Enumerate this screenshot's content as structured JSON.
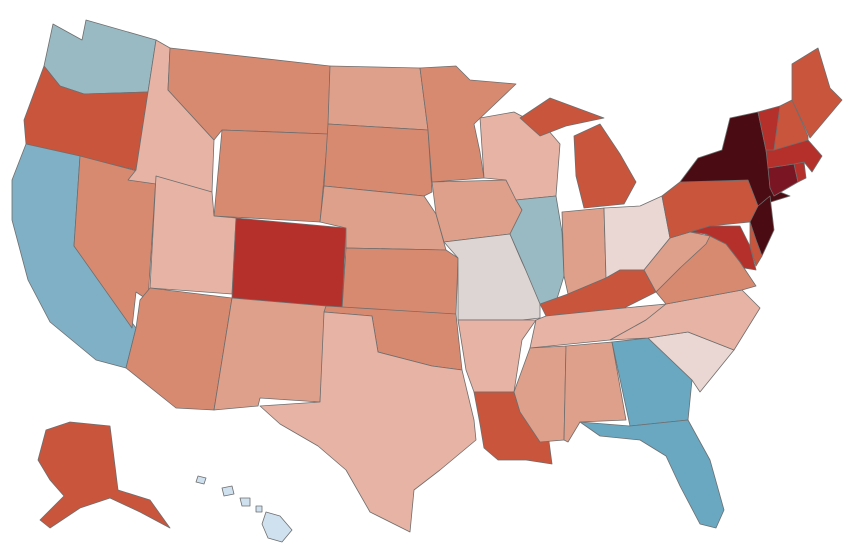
{
  "map": {
    "palette": {
      "very_dark_red": "#4a0c12",
      "dark_red": "#7a1624",
      "red": "#b5302b",
      "medium_red": "#c9553d",
      "salmon": "#d88a70",
      "light_salmon": "#dea08a",
      "pale_salmon": "#e6b3a4",
      "very_pale": "#ead6d2",
      "neutral": "#ddd5d3",
      "light_blue": "#99bac3",
      "blue": "#7fb0c5",
      "medium_blue": "#6aa7c1",
      "pale_blue": "#cfe0ef"
    },
    "states": [
      {
        "id": "WA",
        "color": "#99bac3"
      },
      {
        "id": "OR",
        "color": "#c9553d"
      },
      {
        "id": "CA",
        "color": "#7fb0c5"
      },
      {
        "id": "NV",
        "color": "#d88a70"
      },
      {
        "id": "ID",
        "color": "#e6b3a4"
      },
      {
        "id": "MT",
        "color": "#d88a70"
      },
      {
        "id": "WY",
        "color": "#d88a70"
      },
      {
        "id": "UT",
        "color": "#e6b3a4"
      },
      {
        "id": "AZ",
        "color": "#d88a70"
      },
      {
        "id": "CO",
        "color": "#b5302b"
      },
      {
        "id": "NM",
        "color": "#dea08a"
      },
      {
        "id": "ND",
        "color": "#dea08a"
      },
      {
        "id": "SD",
        "color": "#d88a70"
      },
      {
        "id": "NE",
        "color": "#dea08a"
      },
      {
        "id": "KS",
        "color": "#d88a70"
      },
      {
        "id": "OK",
        "color": "#d88a70"
      },
      {
        "id": "TX",
        "color": "#e6b3a4"
      },
      {
        "id": "MN",
        "color": "#d88a70"
      },
      {
        "id": "IA",
        "color": "#dea08a"
      },
      {
        "id": "MO",
        "color": "#ddd5d3"
      },
      {
        "id": "AR",
        "color": "#e6b3a4"
      },
      {
        "id": "LA",
        "color": "#c9553d"
      },
      {
        "id": "WI",
        "color": "#e6b3a4"
      },
      {
        "id": "IL",
        "color": "#99bac3"
      },
      {
        "id": "MI",
        "color": "#c9553d"
      },
      {
        "id": "IN",
        "color": "#dea08a"
      },
      {
        "id": "OH",
        "color": "#ead6d2"
      },
      {
        "id": "KY",
        "color": "#c9553d"
      },
      {
        "id": "TN",
        "color": "#e6b3a4"
      },
      {
        "id": "MS",
        "color": "#dea08a"
      },
      {
        "id": "AL",
        "color": "#dea08a"
      },
      {
        "id": "GA",
        "color": "#6aa7c1"
      },
      {
        "id": "FL",
        "color": "#6aa7c1"
      },
      {
        "id": "SC",
        "color": "#ead6d2"
      },
      {
        "id": "NC",
        "color": "#e6b3a4"
      },
      {
        "id": "VA",
        "color": "#d88a70"
      },
      {
        "id": "WV",
        "color": "#dea08a"
      },
      {
        "id": "PA",
        "color": "#c9553d"
      },
      {
        "id": "NY",
        "color": "#4a0c12"
      },
      {
        "id": "NJ",
        "color": "#4a0c12"
      },
      {
        "id": "MD",
        "color": "#b5302b"
      },
      {
        "id": "DE",
        "color": "#c9553d"
      },
      {
        "id": "CT",
        "color": "#7a1624"
      },
      {
        "id": "RI",
        "color": "#b5302b"
      },
      {
        "id": "MA",
        "color": "#b5302b"
      },
      {
        "id": "VT",
        "color": "#b5302b"
      },
      {
        "id": "NH",
        "color": "#c9553d"
      },
      {
        "id": "ME",
        "color": "#c9553d"
      },
      {
        "id": "AK",
        "color": "#c9553d"
      },
      {
        "id": "HI",
        "color": "#cfe0ef"
      }
    ]
  }
}
